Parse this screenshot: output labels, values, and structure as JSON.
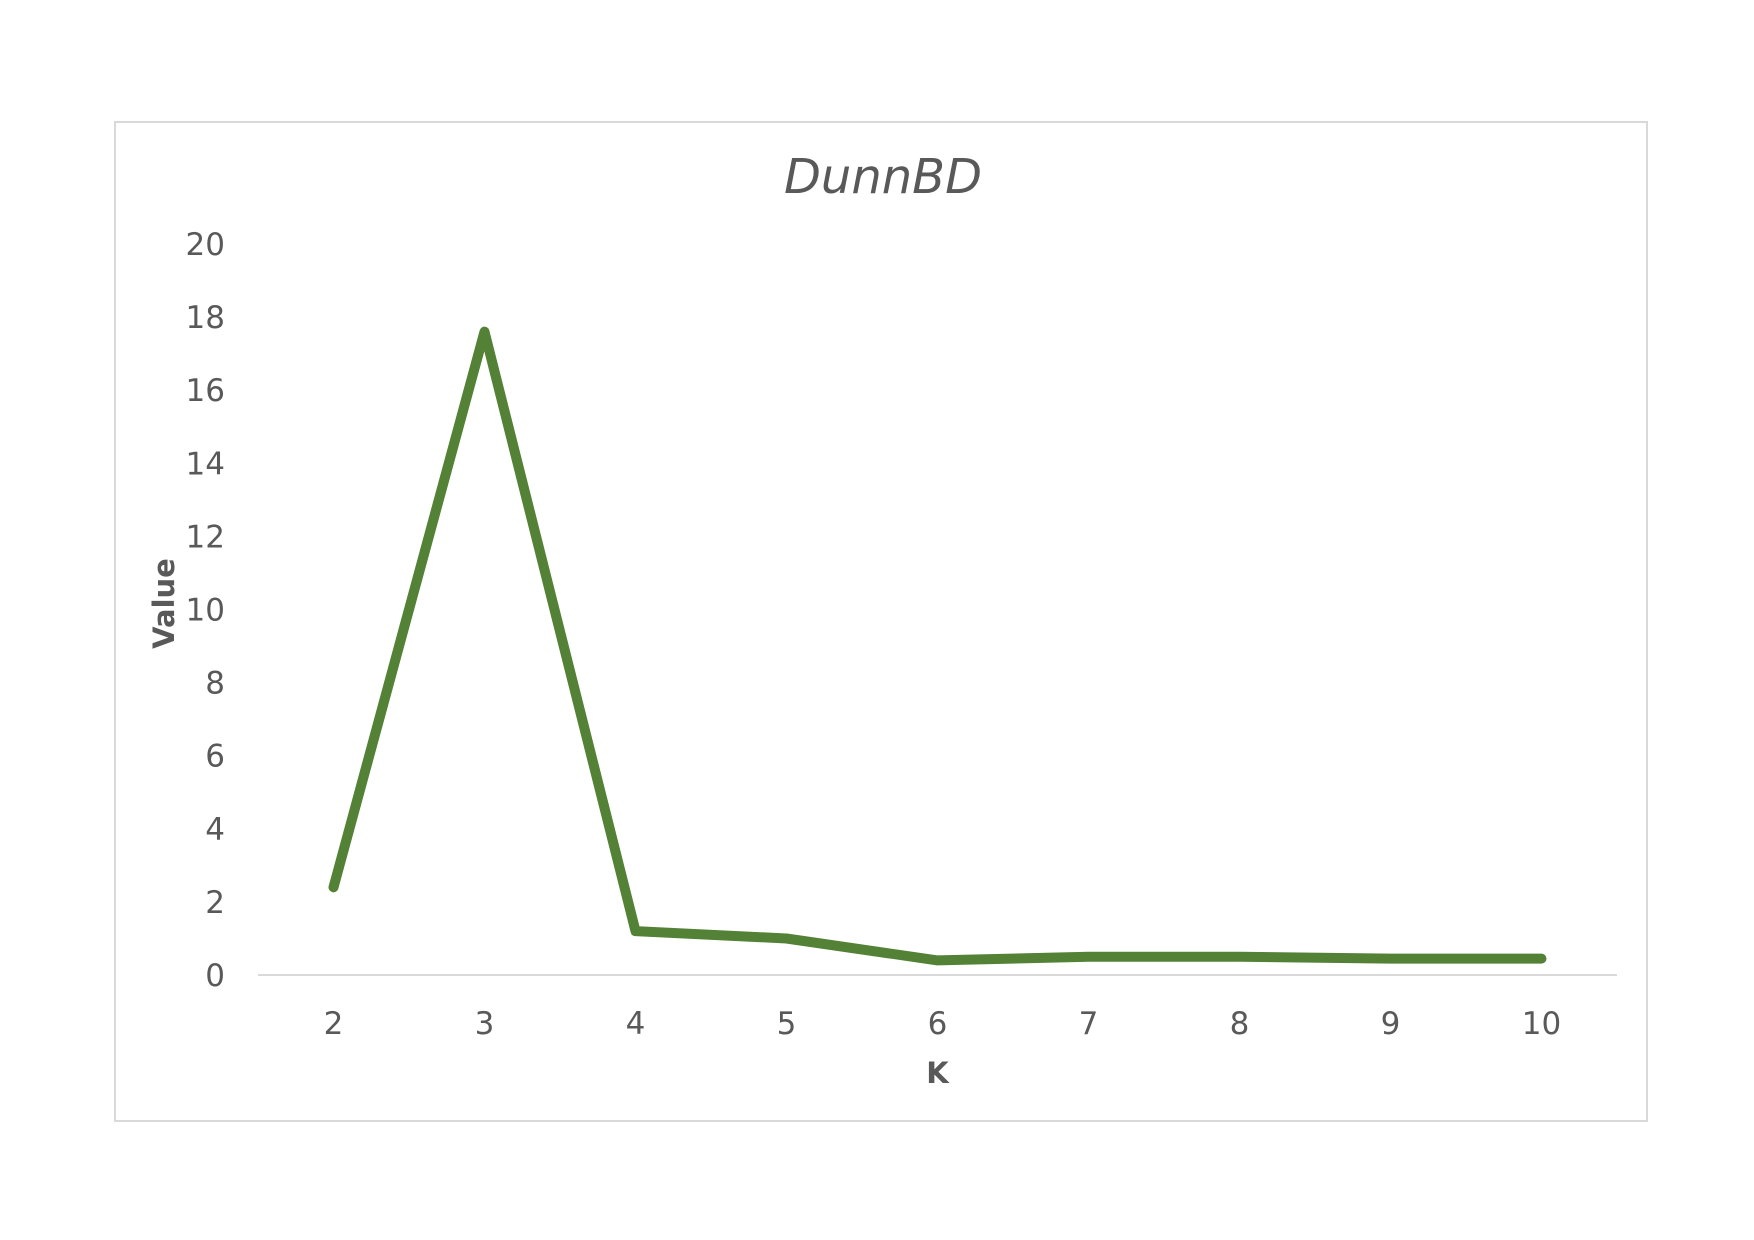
{
  "chart_data": {
    "type": "line",
    "title": "DunnBD",
    "xlabel": "K",
    "ylabel": "Value",
    "categories": [
      "2",
      "3",
      "4",
      "5",
      "6",
      "7",
      "8",
      "9",
      "10"
    ],
    "series": [
      {
        "values": [
          2.4,
          17.6,
          1.2,
          1.0,
          0.4,
          0.5,
          0.5,
          0.45,
          0.45
        ],
        "color": "#538135"
      }
    ],
    "ylim": [
      0,
      20
    ],
    "yticks": [
      0,
      2,
      4,
      6,
      8,
      10,
      12,
      14,
      16,
      18,
      20
    ],
    "grid": false,
    "legend": "none"
  }
}
